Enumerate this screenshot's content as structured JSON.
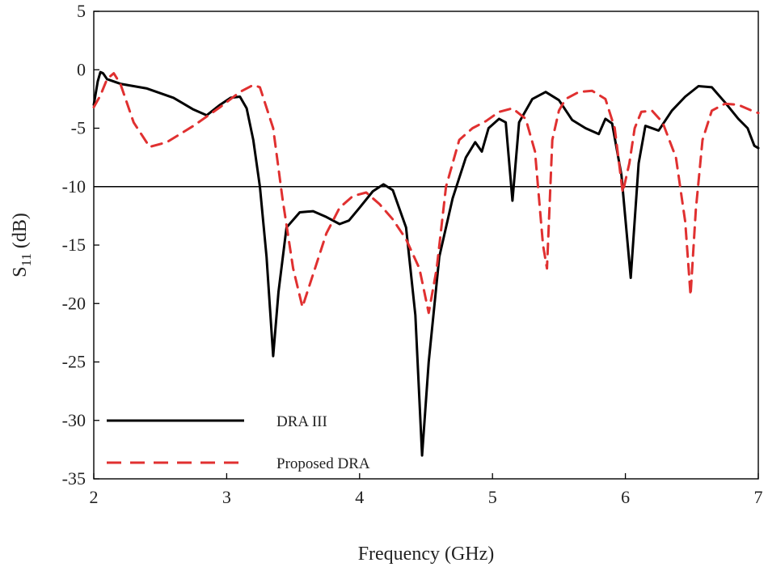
{
  "chart_data": {
    "type": "line",
    "title": "",
    "xlabel": "Frequency (GHz)",
    "ylabel": {
      "main": "S",
      "sub": "11",
      "unit": " (dB)"
    },
    "xlim": [
      2,
      7
    ],
    "ylim": [
      -35,
      5
    ],
    "xticks": [
      2,
      3,
      4,
      5,
      6,
      7
    ],
    "yticks": [
      5,
      0,
      -5,
      -10,
      -15,
      -20,
      -25,
      -30,
      -35
    ],
    "grid": false,
    "legend_position": "bottom-left",
    "reference_line": {
      "y": -10,
      "color": "#000000"
    },
    "series": [
      {
        "name": "DRA III",
        "color": "#000000",
        "dash": "solid",
        "points": [
          [
            2.0,
            -3.0
          ],
          [
            2.03,
            -1.0
          ],
          [
            2.05,
            -0.2
          ],
          [
            2.07,
            -0.3
          ],
          [
            2.1,
            -0.8
          ],
          [
            2.2,
            -1.2
          ],
          [
            2.4,
            -1.6
          ],
          [
            2.6,
            -2.4
          ],
          [
            2.75,
            -3.4
          ],
          [
            2.85,
            -3.9
          ],
          [
            2.95,
            -3.0
          ],
          [
            3.03,
            -2.4
          ],
          [
            3.1,
            -2.3
          ],
          [
            3.15,
            -3.3
          ],
          [
            3.2,
            -6.0
          ],
          [
            3.25,
            -10.0
          ],
          [
            3.3,
            -16.0
          ],
          [
            3.35,
            -24.5
          ],
          [
            3.39,
            -19.0
          ],
          [
            3.45,
            -13.5
          ],
          [
            3.55,
            -12.2
          ],
          [
            3.65,
            -12.1
          ],
          [
            3.75,
            -12.6
          ],
          [
            3.85,
            -13.2
          ],
          [
            3.92,
            -12.9
          ],
          [
            4.0,
            -11.8
          ],
          [
            4.1,
            -10.4
          ],
          [
            4.18,
            -9.8
          ],
          [
            4.25,
            -10.3
          ],
          [
            4.35,
            -13.5
          ],
          [
            4.42,
            -21.0
          ],
          [
            4.47,
            -33.0
          ],
          [
            4.52,
            -25.0
          ],
          [
            4.6,
            -16.0
          ],
          [
            4.7,
            -11.0
          ],
          [
            4.8,
            -7.5
          ],
          [
            4.87,
            -6.2
          ],
          [
            4.92,
            -7.0
          ],
          [
            4.97,
            -5.0
          ],
          [
            5.05,
            -4.2
          ],
          [
            5.1,
            -4.5
          ],
          [
            5.15,
            -11.2
          ],
          [
            5.2,
            -4.5
          ],
          [
            5.3,
            -2.5
          ],
          [
            5.4,
            -1.9
          ],
          [
            5.5,
            -2.6
          ],
          [
            5.6,
            -4.3
          ],
          [
            5.7,
            -5.0
          ],
          [
            5.8,
            -5.5
          ],
          [
            5.85,
            -4.2
          ],
          [
            5.9,
            -4.6
          ],
          [
            5.97,
            -9.0
          ],
          [
            6.04,
            -17.8
          ],
          [
            6.1,
            -8.0
          ],
          [
            6.15,
            -4.8
          ],
          [
            6.25,
            -5.2
          ],
          [
            6.35,
            -3.5
          ],
          [
            6.45,
            -2.3
          ],
          [
            6.55,
            -1.4
          ],
          [
            6.65,
            -1.5
          ],
          [
            6.75,
            -2.8
          ],
          [
            6.85,
            -4.2
          ],
          [
            6.92,
            -5.0
          ],
          [
            6.97,
            -6.5
          ],
          [
            7.0,
            -6.7
          ]
        ]
      },
      {
        "name": "Proposed DRA",
        "color": "#e03030",
        "dash": "dashed",
        "points": [
          [
            2.0,
            -3.2
          ],
          [
            2.05,
            -2.2
          ],
          [
            2.1,
            -0.8
          ],
          [
            2.15,
            -0.3
          ],
          [
            2.2,
            -1.2
          ],
          [
            2.3,
            -4.5
          ],
          [
            2.42,
            -6.6
          ],
          [
            2.55,
            -6.2
          ],
          [
            2.75,
            -4.8
          ],
          [
            2.95,
            -3.2
          ],
          [
            3.1,
            -1.9
          ],
          [
            3.2,
            -1.3
          ],
          [
            3.25,
            -1.5
          ],
          [
            3.35,
            -5.0
          ],
          [
            3.42,
            -11.0
          ],
          [
            3.5,
            -17.0
          ],
          [
            3.57,
            -20.3
          ],
          [
            3.65,
            -17.5
          ],
          [
            3.75,
            -14.0
          ],
          [
            3.85,
            -11.8
          ],
          [
            3.95,
            -10.8
          ],
          [
            4.05,
            -10.5
          ],
          [
            4.15,
            -11.5
          ],
          [
            4.25,
            -12.8
          ],
          [
            4.35,
            -14.5
          ],
          [
            4.45,
            -17.0
          ],
          [
            4.52,
            -20.8
          ],
          [
            4.58,
            -17.0
          ],
          [
            4.65,
            -10.0
          ],
          [
            4.75,
            -6.0
          ],
          [
            4.85,
            -5.0
          ],
          [
            4.95,
            -4.4
          ],
          [
            5.05,
            -3.6
          ],
          [
            5.15,
            -3.3
          ],
          [
            5.25,
            -4.2
          ],
          [
            5.32,
            -7.0
          ],
          [
            5.38,
            -15.0
          ],
          [
            5.41,
            -17.0
          ],
          [
            5.45,
            -6.0
          ],
          [
            5.5,
            -3.5
          ],
          [
            5.55,
            -2.5
          ],
          [
            5.65,
            -1.9
          ],
          [
            5.75,
            -1.8
          ],
          [
            5.85,
            -2.5
          ],
          [
            5.92,
            -5.0
          ],
          [
            5.98,
            -10.5
          ],
          [
            6.03,
            -8.0
          ],
          [
            6.07,
            -5.0
          ],
          [
            6.12,
            -3.6
          ],
          [
            6.2,
            -3.5
          ],
          [
            6.28,
            -4.5
          ],
          [
            6.38,
            -7.5
          ],
          [
            6.45,
            -13.0
          ],
          [
            6.49,
            -19.3
          ],
          [
            6.53,
            -12.0
          ],
          [
            6.58,
            -6.0
          ],
          [
            6.65,
            -3.5
          ],
          [
            6.75,
            -2.9
          ],
          [
            6.85,
            -3.0
          ],
          [
            6.95,
            -3.5
          ],
          [
            7.0,
            -3.7
          ]
        ]
      }
    ]
  }
}
